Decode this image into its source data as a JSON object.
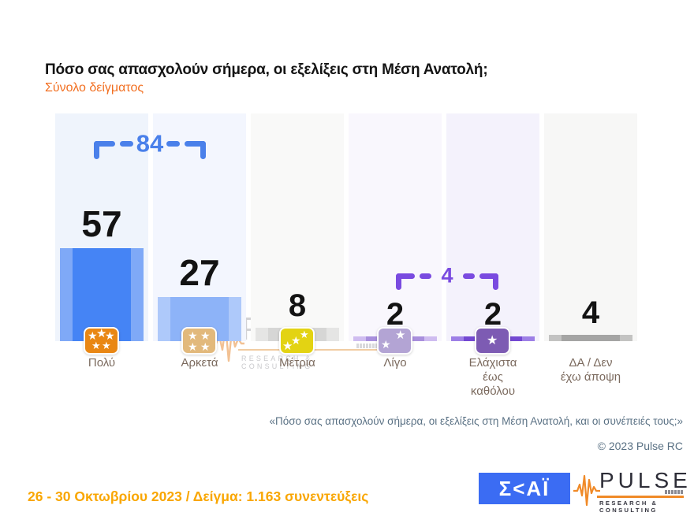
{
  "header": {
    "title": "Πόσο σας απασχολούν σήμερα, οι εξελίξεις στη Μέση Ανατολή;",
    "subtitle": "Σύνολο δείγματος"
  },
  "chart_data": {
    "type": "bar",
    "title": "Πόσο σας απασχολούν σήμερα, οι εξελίξεις στη Μέση Ανατολή;",
    "subtitle": "Σύνολο δείγματος",
    "categories": [
      "Πολύ",
      "Αρκετά",
      "Μέτρια",
      "Λίγο",
      "Ελάχιστα έως καθόλου",
      "ΔΑ / Δεν έχω άποψη"
    ],
    "values": [
      57,
      27,
      8,
      2,
      2,
      4
    ],
    "bar_colors": [
      "#4584f5",
      "#8db3f8",
      "#d6d6d5",
      "#a98fdd",
      "#7348d2",
      "#a5a5a4"
    ],
    "grid": false,
    "legend": false,
    "value_labels_shown": true,
    "annotations": [
      {
        "label": "84",
        "from_index": 0,
        "to_index": 1,
        "color": "#4a80ea"
      },
      {
        "label": "4",
        "from_index": 3,
        "to_index": 4,
        "color": "#7a4be0"
      }
    ]
  },
  "bars": [
    {
      "value": "57",
      "label_lines": [
        "Πολύ"
      ],
      "color": "#4584f5",
      "edge": "#7fa9f7",
      "bg": "#eff4fc",
      "icon": "stars-5-icon",
      "icon_color": "#e98714"
    },
    {
      "value": "27",
      "label_lines": [
        "Αρκετά"
      ],
      "color": "#8db3f8",
      "edge": "#aec9fa",
      "bg": "#f3f6fe",
      "icon": "stars-4-icon",
      "icon_color": "#e2b97c"
    },
    {
      "value": "8",
      "label_lines": [
        "Μέτρια"
      ],
      "color": "#d6d6d5",
      "edge": "#e5e5e4",
      "bg": "#f9f9f8",
      "icon": "stars-3-icon",
      "icon_color": "#e3d313"
    },
    {
      "value": "2",
      "label_lines": [
        "Λίγο"
      ],
      "color": "#a98fdd",
      "edge": "#cfbcf0",
      "bg": "#f9f7fd",
      "icon": "stars-2-icon",
      "icon_color": "#b3a4d4"
    },
    {
      "value": "2",
      "label_lines": [
        "Ελάχιστα",
        "έως",
        "καθόλου"
      ],
      "color": "#7348d2",
      "edge": "#9d7fe6",
      "bg": "#f4f2fc",
      "icon": "star-1-icon",
      "icon_color": "#7d5bb3"
    },
    {
      "value": "4",
      "label_lines": [
        "ΔΑ / Δεν",
        "έχω άποψη"
      ],
      "color": "#a5a5a4",
      "edge": "#c3c3c2",
      "bg": "#f7f7f6",
      "icon": null,
      "icon_color": null
    }
  ],
  "watermark": {
    "brand": "PULSE",
    "tagline": "RESEARCH & CONSULTING"
  },
  "footnote": {
    "quote": "«Πόσο σας απασχολούν σήμερα, οι εξελίξεις στη Μέση Ανατολή, και οι συνέπειές τους;»",
    "copyright": "© 2023 Pulse RC"
  },
  "footer": {
    "survey_info": "26 - 30 Οκτωβρίου 2023 / Δείγμα: 1.163 συνεντεύξεις"
  },
  "logos": {
    "skai": "Σ<ΑΪ",
    "pulse_brand": "PULSE",
    "pulse_tagline": "RESEARCH & CONSULTING"
  }
}
